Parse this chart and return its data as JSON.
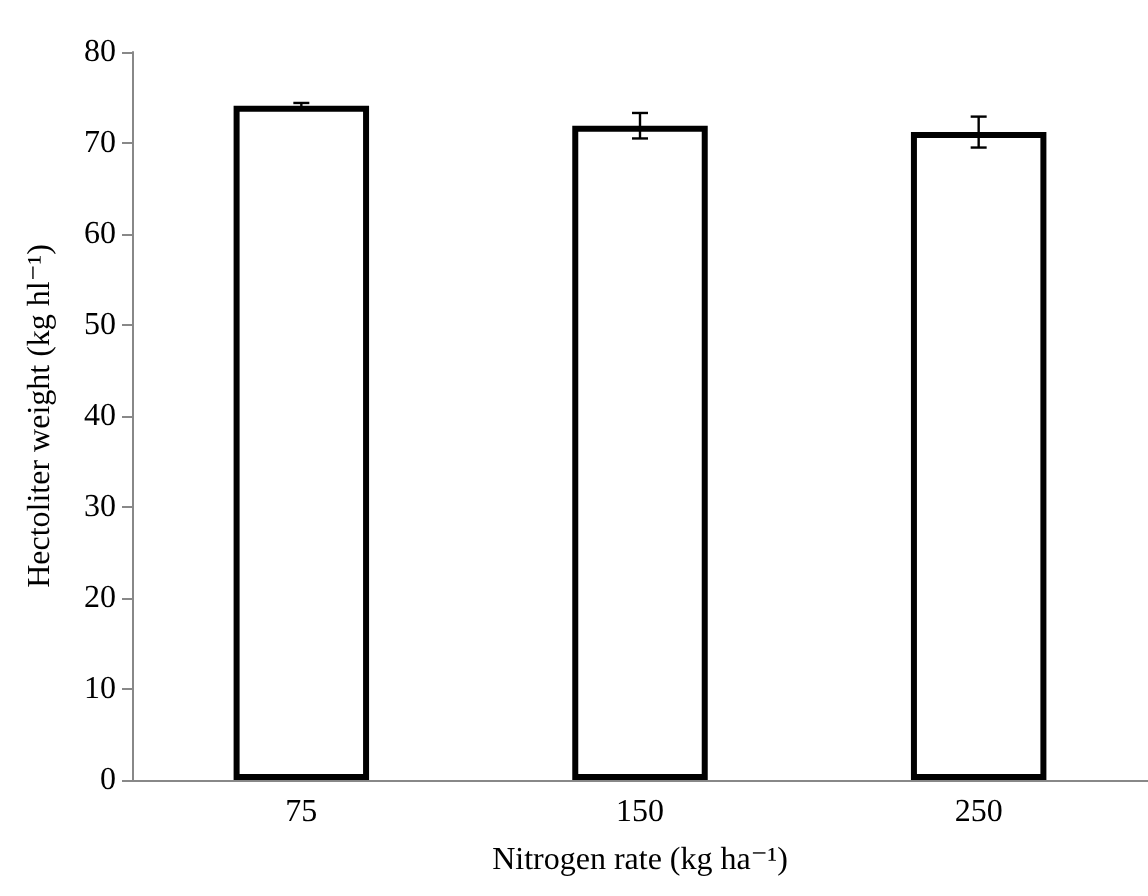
{
  "chart_data": {
    "type": "bar",
    "xlabel": "Nitrogen rate (kg ha⁻¹)",
    "ylabel": "Hectoliter weight (kg hl⁻¹)",
    "categories": [
      "75",
      "150",
      "250"
    ],
    "values": [
      74.1,
      71.9,
      71.2
    ],
    "errors": [
      0.3,
      1.4,
      1.7
    ],
    "color": "#000000",
    "ylim": [
      0,
      80
    ],
    "yticks": [
      0,
      10,
      20,
      30,
      40,
      50,
      60,
      70,
      80
    ],
    "grid": false
  }
}
